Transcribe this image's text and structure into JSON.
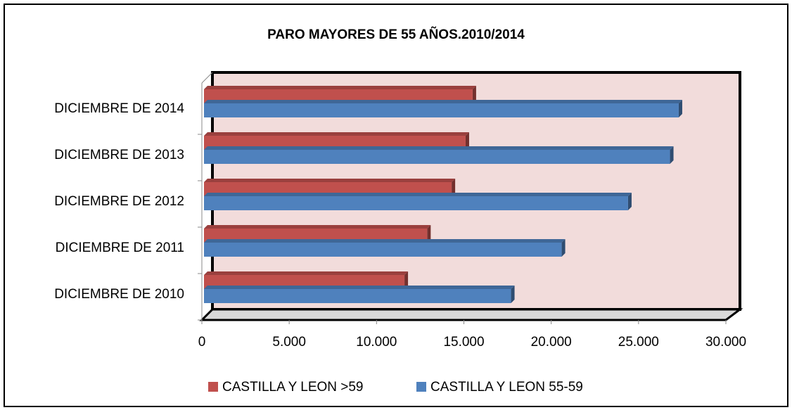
{
  "chart_data": {
    "type": "bar",
    "title": "PARO MAYORES DE 55 AÑOS.2010/2014",
    "categories": [
      "DICIEMBRE DE 2010",
      "DICIEMBRE DE 2011",
      "DICIEMBRE DE 2012",
      "DICIEMBRE DE 2013",
      "DICIEMBRE DE 2014"
    ],
    "series": [
      {
        "name": "CASTILLA Y LEON >59",
        "color": "#c0504d",
        "values": [
          11600,
          12900,
          14300,
          15100,
          15500
        ]
      },
      {
        "name": "CASTILLA Y LEON 55-59",
        "color": "#4f81bd",
        "values": [
          17700,
          20600,
          24400,
          26800,
          27300
        ]
      }
    ],
    "xlim": [
      0,
      30000
    ],
    "xticks": [
      0,
      {
        "value": 5000,
        "label": "5.000"
      },
      {
        "value": 10000,
        "label": "10.000"
      },
      {
        "value": 15000,
        "label": "15.000"
      },
      {
        "value": 20000,
        "label": "20.000"
      },
      {
        "value": 25000,
        "label": "25.000"
      },
      {
        "value": 30000,
        "label": "30.000"
      }
    ],
    "legend": "bottom"
  }
}
